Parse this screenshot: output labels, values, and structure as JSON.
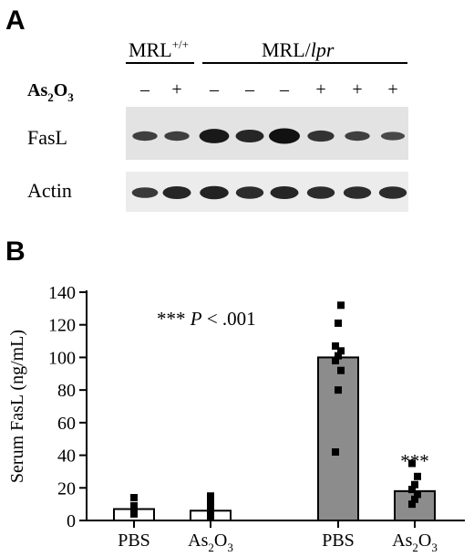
{
  "figure": {
    "panel_a_label": "A",
    "panel_b_label": "B"
  },
  "blot": {
    "group_mrl_wt": "MRL",
    "group_mrl_wt_sup": "+/+",
    "group_mrl_lpr_prefix": "MRL/",
    "group_mrl_lpr_italic": "lpr",
    "treatment_label_base": "As",
    "treatment_label_sub1": "2",
    "treatment_label_mid": "O",
    "treatment_label_sub2": "3",
    "treatment_signs": [
      "–",
      "+",
      "–",
      "–",
      "–",
      "+",
      "+",
      "+"
    ],
    "rows": [
      {
        "label": "FasL",
        "band_intensity": [
          0.45,
          0.45,
          0.9,
          0.75,
          1.0,
          0.6,
          0.45,
          0.35
        ]
      },
      {
        "label": "Actin",
        "band_intensity": [
          0.55,
          0.75,
          0.8,
          0.7,
          0.75,
          0.7,
          0.7,
          0.7
        ]
      }
    ],
    "colors": {
      "band": "#111111",
      "background": "#e6e6e6"
    }
  },
  "chart_data": {
    "type": "bar",
    "ylabel": "Serum FasL (ng/mL)",
    "ylim": [
      0,
      140
    ],
    "yticks": [
      0,
      20,
      40,
      60,
      80,
      100,
      120,
      140
    ],
    "categories": [
      "PBS",
      "As2O3",
      "PBS",
      "As2O3"
    ],
    "category_labels": [
      {
        "base": "PBS",
        "sub": "",
        "tail": "",
        "sub2": ""
      },
      {
        "base": "As",
        "sub": "2",
        "tail": "O",
        "sub2": "3"
      },
      {
        "base": "PBS",
        "sub": "",
        "tail": "",
        "sub2": ""
      },
      {
        "base": "As",
        "sub": "2",
        "tail": "O",
        "sub2": "3"
      }
    ],
    "values": [
      7,
      6,
      100,
      18
    ],
    "bar_colors": [
      "#ffffff",
      "#ffffff",
      "#8c8c8c",
      "#8c8c8c"
    ],
    "points": [
      [
        4,
        6,
        9,
        14
      ],
      [
        2,
        5,
        8,
        11,
        15
      ],
      [
        42,
        80,
        92,
        98,
        101,
        104,
        107,
        121,
        132
      ],
      [
        10,
        13,
        16,
        19,
        22,
        27,
        35
      ]
    ],
    "annotation_legend": "*** P < .001",
    "annotation_legend_parts": {
      "stars": "***",
      "p": "P",
      "rest": "< .001"
    },
    "bar_annotations": [
      "",
      "",
      "",
      "***"
    ]
  }
}
